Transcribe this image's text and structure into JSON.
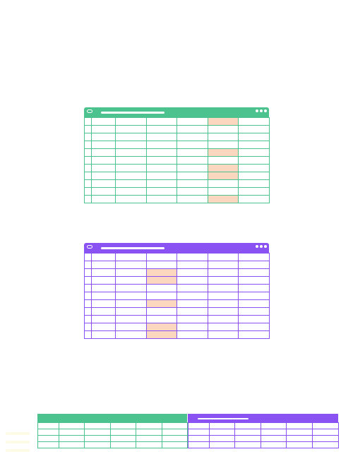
{
  "illustration": {
    "colors": {
      "green": "#4cc28f",
      "purple": "#8a52f2",
      "highlight": "#fbd7c0",
      "background": "#ffffff"
    },
    "green_sheet": {
      "rows": 11,
      "cols": 7,
      "highlighted_cells": [
        [
          0,
          5
        ],
        [
          4,
          5
        ],
        [
          6,
          5
        ],
        [
          7,
          5
        ],
        [
          10,
          5
        ]
      ]
    },
    "purple_sheet": {
      "rows": 11,
      "cols": 7,
      "highlighted_cells": [
        [
          2,
          3
        ],
        [
          3,
          3
        ],
        [
          6,
          3
        ],
        [
          9,
          3
        ],
        [
          10,
          3
        ]
      ]
    },
    "bottom_banner": {
      "left_rows": 4,
      "right_rows": 4,
      "cols": 6
    },
    "icons": {
      "window_menu": "window-menu-icon",
      "window_dots": "more-dots-icon"
    }
  }
}
